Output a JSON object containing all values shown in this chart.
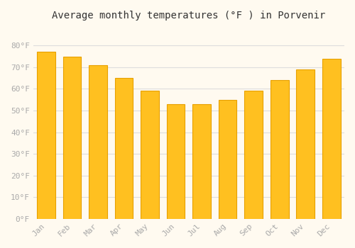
{
  "title": "Average monthly temperatures (°F ) in Porvenir",
  "months": [
    "Jan",
    "Feb",
    "Mar",
    "Apr",
    "May",
    "Jun",
    "Jul",
    "Aug",
    "Sep",
    "Oct",
    "Nov",
    "Dec"
  ],
  "values": [
    77,
    75,
    71,
    65,
    59,
    53,
    53,
    55,
    59,
    64,
    69,
    74
  ],
  "bar_color": "#FFC020",
  "bar_edge_color": "#E8A000",
  "background_color": "#FFFAF0",
  "grid_color": "#DDDDDD",
  "text_color": "#AAAAAA",
  "title_color": "#333333",
  "ylim": [
    0,
    88
  ],
  "yticks": [
    0,
    10,
    20,
    30,
    40,
    50,
    60,
    70,
    80
  ],
  "ylabel_suffix": "°F"
}
